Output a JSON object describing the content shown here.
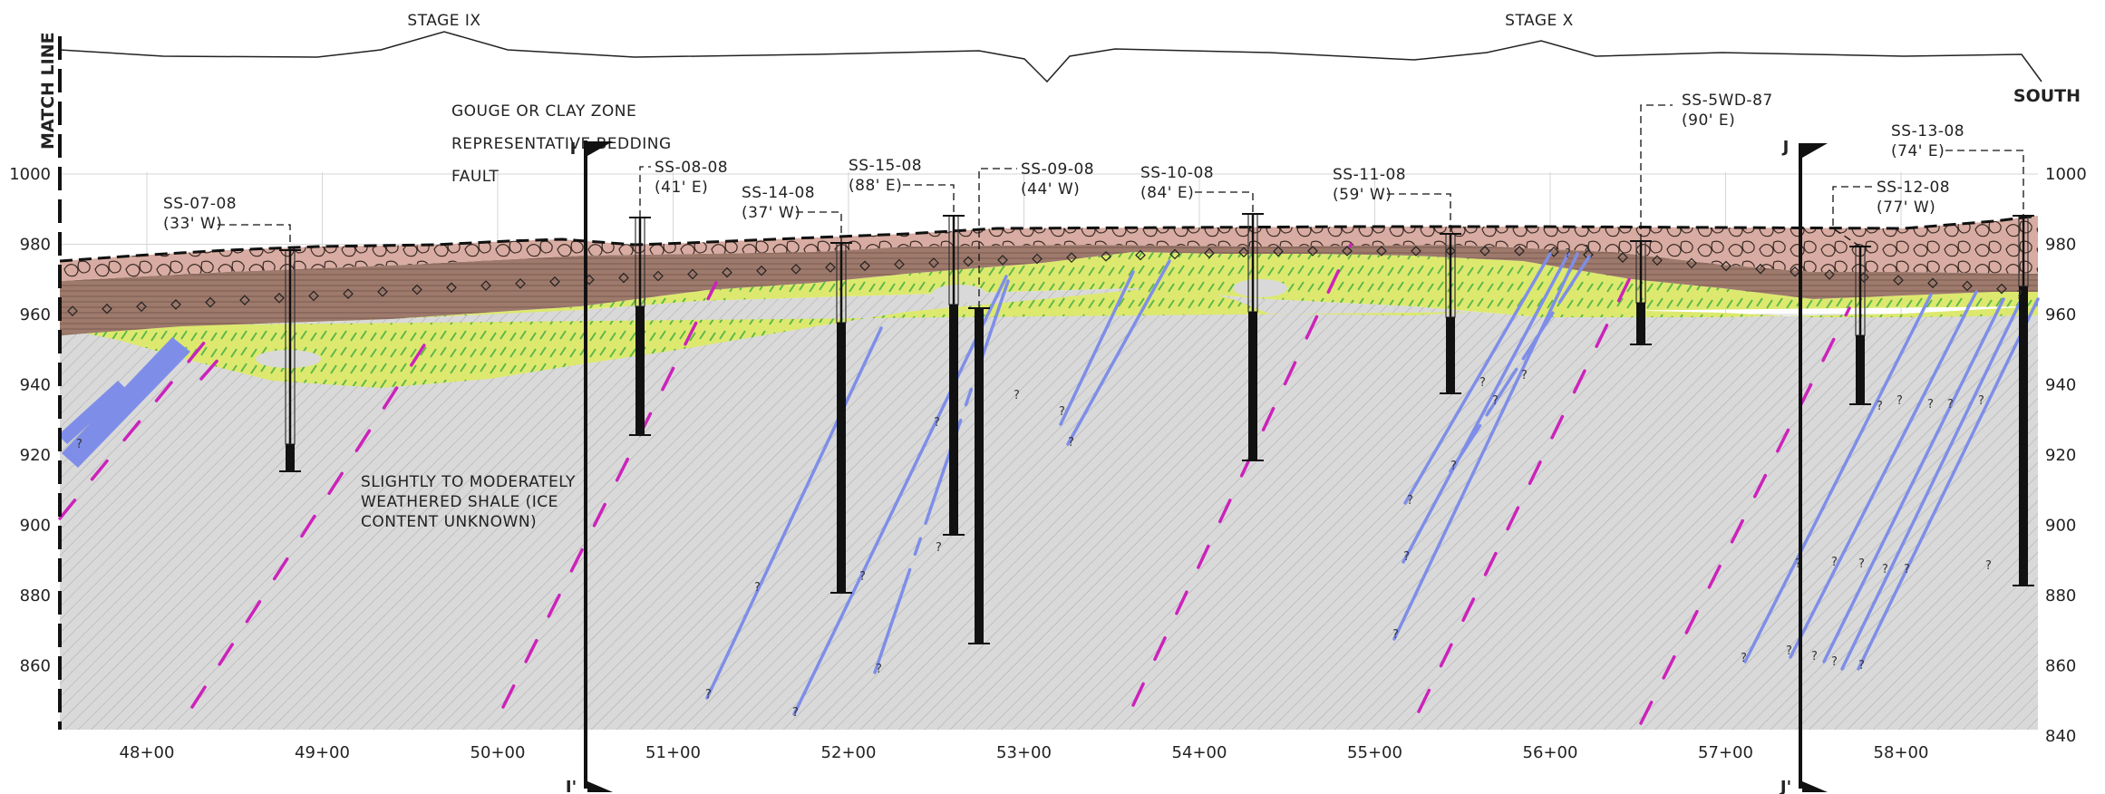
{
  "stages": [
    "STAGE IX",
    "STAGE X"
  ],
  "match_line": "MATCH LINE",
  "direction": "SOUTH",
  "legend": [
    "GOUGE OR CLAY ZONE",
    "REPRESENTATIVE BEDDING",
    "FAULT"
  ],
  "annotation": [
    "SLIGHTLY TO MODERATELY",
    "WEATHERED SHALE (ICE",
    "CONTENT UNKNOWN)"
  ],
  "elev_ticks": [
    "1000",
    "980",
    "960",
    "940",
    "920",
    "900",
    "880",
    "860"
  ],
  "elev_ticks_right": [
    "1000",
    "980",
    "960",
    "940",
    "920",
    "900",
    "880",
    "860",
    "840"
  ],
  "stations": [
    "48+00",
    "49+00",
    "50+00",
    "51+00",
    "52+00",
    "53+00",
    "54+00",
    "55+00",
    "56+00",
    "57+00",
    "58+00"
  ],
  "section_markers": {
    "i_top": "I",
    "i_bottom": "I'",
    "j_top": "J",
    "j_bottom": "J'"
  },
  "boreholes": [
    {
      "name": "SS-07-08",
      "offset": "(33' W)"
    },
    {
      "name": "SS-08-08",
      "offset": "(41' E)"
    },
    {
      "name": "SS-14-08",
      "offset": "(37' W)"
    },
    {
      "name": "SS-15-08",
      "offset": "(88' E)"
    },
    {
      "name": "SS-09-08",
      "offset": "(44' W)"
    },
    {
      "name": "SS-10-08",
      "offset": "(84' E)"
    },
    {
      "name": "SS-11-08",
      "offset": "(59' W)"
    },
    {
      "name": "SS-5WD-87",
      "offset": "(90' E)"
    },
    {
      "name": "SS-12-08",
      "offset": "(77' W)"
    },
    {
      "name": "SS-13-08",
      "offset": "(74' E)"
    }
  ],
  "question_mark": "?",
  "colors": {
    "fill_layer": "#d8aca2",
    "brown_layer": "#9e7a6c",
    "clay_zone": "#dde96e",
    "clay_dash": "#5cb84a",
    "shale": "#d9d9d9",
    "bedding": "#7e8ee8",
    "fault": "#cc22bb",
    "grid": "#d6d6d6"
  }
}
